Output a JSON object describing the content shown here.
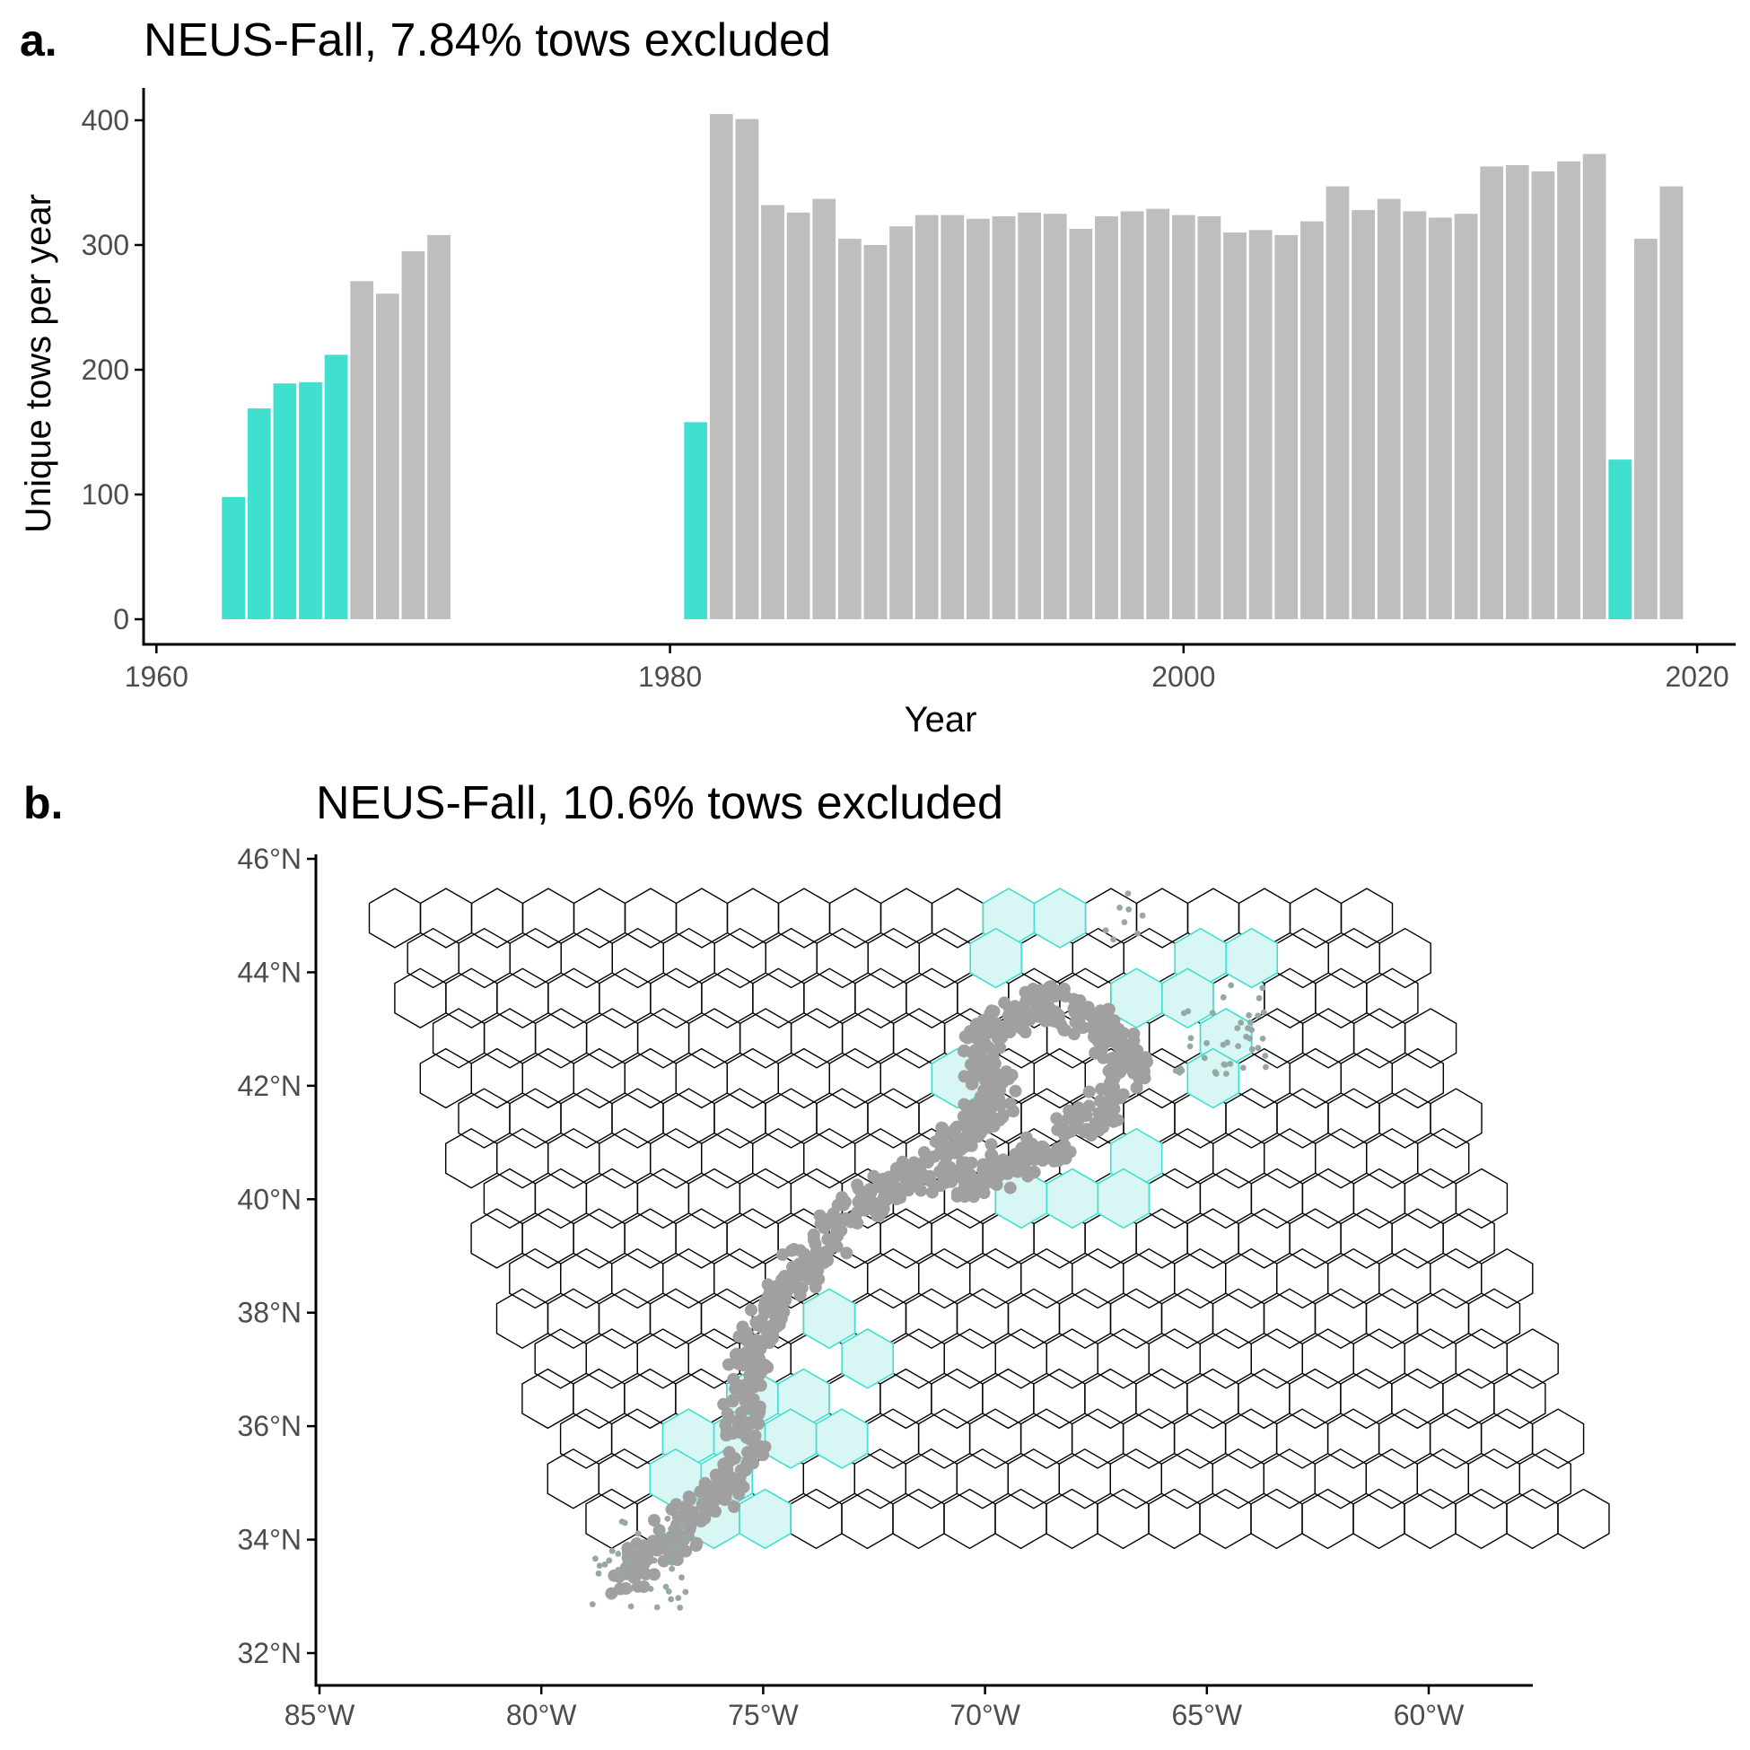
{
  "chart_data": [
    {
      "type": "bar",
      "panel_letter": "a.",
      "title": "NEUS-Fall, 7.84% tows excluded",
      "xlabel": "Year",
      "ylabel": "Unique tows per year",
      "xlim": [
        1959.5,
        2021.5
      ],
      "ylim": [
        0,
        420
      ],
      "x_ticks": [
        1960,
        1980,
        2000,
        2020
      ],
      "y_ticks": [
        0,
        100,
        200,
        300,
        400
      ],
      "colors": {
        "excluded": "#40E0D0",
        "included": "#BEBEBE"
      },
      "grid": false,
      "x": [
        1963,
        1964,
        1965,
        1966,
        1967,
        1968,
        1969,
        1970,
        1971,
        1981,
        1982,
        1983,
        1984,
        1985,
        1986,
        1987,
        1988,
        1989,
        1990,
        1991,
        1992,
        1993,
        1994,
        1995,
        1996,
        1997,
        1998,
        1999,
        2000,
        2001,
        2002,
        2003,
        2004,
        2005,
        2006,
        2007,
        2008,
        2009,
        2010,
        2011,
        2012,
        2013,
        2014,
        2015,
        2016,
        2017,
        2018,
        2019
      ],
      "values": [
        98,
        169,
        189,
        190,
        212,
        271,
        261,
        295,
        308,
        158,
        405,
        401,
        332,
        326,
        337,
        305,
        300,
        315,
        324,
        324,
        321,
        323,
        326,
        325,
        313,
        323,
        327,
        329,
        324,
        323,
        310,
        312,
        308,
        319,
        347,
        328,
        337,
        327,
        322,
        325,
        363,
        364,
        359,
        367,
        373,
        128,
        305,
        347
      ],
      "excluded": [
        true,
        true,
        true,
        true,
        true,
        false,
        false,
        false,
        false,
        true,
        false,
        false,
        false,
        false,
        false,
        false,
        false,
        false,
        false,
        false,
        false,
        false,
        false,
        false,
        false,
        false,
        false,
        false,
        false,
        false,
        false,
        false,
        false,
        false,
        false,
        false,
        false,
        false,
        false,
        false,
        false,
        false,
        false,
        false,
        false,
        true,
        false,
        false
      ]
    },
    {
      "type": "scatter",
      "panel_letter": "b.",
      "title": "NEUS-Fall, 10.6% tows excluded",
      "x_tick_labels": [
        "85°W",
        "80°W",
        "75°W",
        "70°W",
        "65°W",
        "60°W"
      ],
      "y_tick_labels": [
        "32°N",
        "34°N",
        "36°N",
        "38°N",
        "40°N",
        "42°N",
        "44°N",
        "46°N"
      ],
      "x_ticks": [
        -85,
        -80,
        -75,
        -70,
        -65,
        -60
      ],
      "y_ticks": [
        32,
        34,
        36,
        38,
        40,
        42,
        44,
        46
      ],
      "xlim": [
        -85,
        -57.5
      ],
      "ylim": [
        31.4,
        46.1
      ],
      "grid": false,
      "colors": {
        "hex_outline": "#000000",
        "excluded_fill": "#D8F6F3",
        "excluded_outline": "#40E0D0",
        "points": "#A0A0A0"
      },
      "hex_grid": {
        "rows": 14,
        "columns": 20,
        "shape": "hexagonal cells on a skewed grid"
      },
      "excluded_cells": [
        [
          0,
          12
        ],
        [
          0,
          13
        ],
        [
          1,
          11
        ],
        [
          1,
          15
        ],
        [
          1,
          16
        ],
        [
          2,
          14
        ],
        [
          2,
          15
        ],
        [
          3,
          15
        ],
        [
          4,
          10
        ],
        [
          4,
          15
        ],
        [
          6,
          13
        ],
        [
          7,
          10
        ],
        [
          7,
          11
        ],
        [
          7,
          12
        ],
        [
          10,
          6
        ],
        [
          11,
          6
        ],
        [
          12,
          4
        ],
        [
          12,
          5
        ],
        [
          13,
          2
        ],
        [
          13,
          3
        ],
        [
          13,
          4
        ],
        [
          13,
          5
        ],
        [
          14,
          2
        ],
        [
          14,
          3
        ],
        [
          15,
          2
        ],
        [
          15,
          3
        ]
      ]
    }
  ]
}
